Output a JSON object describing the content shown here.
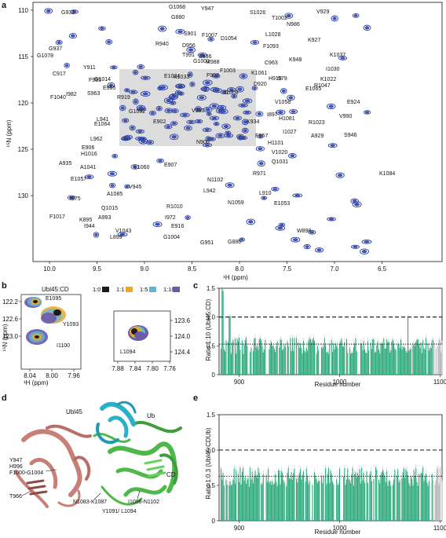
{
  "panels": {
    "a": {
      "letter": "a",
      "x_axis_label": "¹H (ppm)",
      "y_axis_label": "¹⁵N (ppm)",
      "x_ticks": [
        "10.0",
        "9.5",
        "9.0",
        "8.5",
        "8.0",
        "7.5",
        "7.0",
        "6.5"
      ],
      "y_ticks": [
        "110",
        "115",
        "120",
        "125",
        "130"
      ],
      "peak_labels": [
        "G932",
        "G1068",
        "Y947",
        "S1026",
        "T1002",
        "V929",
        "G880",
        "N986",
        "K927",
        "G937",
        "S901",
        "F1007",
        "D1054",
        "L1028",
        "G1078",
        "R940",
        "D956",
        "F1093",
        "I1030",
        "T991",
        "S936",
        "K1037",
        "M988",
        "G1001",
        "K948",
        "C917",
        "Y911",
        "F1003",
        "C963",
        "G1014",
        "F995",
        "K1033",
        "K1061",
        "I979",
        "K1022",
        "E1034",
        "F903",
        "H915",
        "E1065",
        "I982",
        "E955",
        "D920",
        "R1047",
        "F1040",
        "S963",
        "R919",
        "I1008",
        "E924",
        "V980",
        "V1058",
        "G1092",
        "L941",
        "I897",
        "E902",
        "V990",
        "K934",
        "R1023",
        "E1064",
        "H1081",
        "A929",
        "L962",
        "E957",
        "I1027",
        "E906",
        "N900",
        "H1016",
        "H1101",
        "S946",
        "A935",
        "V1020",
        "A1041",
        "L1060",
        "K1084",
        "E907",
        "R971",
        "Q1031",
        "E1057",
        "V945",
        "N1102",
        "A1085",
        "L942",
        "L910",
        "I975",
        "Q1015",
        "R1010",
        "N1059",
        "E1053",
        "F1017",
        "A993",
        "I972",
        "K895",
        "E916",
        "W898",
        "I944",
        "V1043",
        "G1004",
        "L899",
        "G886",
        "G951"
      ]
    },
    "b": {
      "letter": "b",
      "construct": "Ubl45:CD",
      "legend": [
        "1:0",
        "1:1",
        "1:5",
        "1:10"
      ],
      "legend_colors": [
        "#1a1a1a",
        "#e8a82a",
        "#5fb5d8",
        "#6e5aa8"
      ],
      "y_axis_label": "¹⁵N (ppm)",
      "x_axis_label": "¹H (ppm)",
      "left_x_ticks": [
        "8.04",
        "8.00",
        "7.96"
      ],
      "left_y_ticks": [
        "122.2",
        "122.6",
        "123.0"
      ],
      "right_x_ticks": [
        "7.88",
        "7.84",
        "7.80",
        "7.76"
      ],
      "right_y_ticks": [
        "123.6",
        "124.0",
        "124.4"
      ],
      "peak_labels": [
        "E1095",
        "Y1093",
        "I1100",
        "L1094"
      ]
    },
    "c": {
      "letter": "c",
      "y_axis_label": "Ratio 1:10 (Ubl45:CD)",
      "x_axis_label": "Residue number"
    },
    "d": {
      "letter": "d",
      "labels": [
        "Ubl45",
        "Ub",
        "CD",
        "Y947",
        "H996",
        "F1000-G1004",
        "T966",
        "N1083-K1087",
        "Y1091/ L1094",
        "I1098-N1102"
      ],
      "label_colors": {
        "Ubl45": "#c87f78",
        "Ub": "#2bb0c8",
        "CD": "#4fb84a"
      }
    },
    "e": {
      "letter": "e",
      "y_axis_label": "Ratio 1:0.3 (Ubl45:CDUb)",
      "x_axis_label": "Residue number"
    }
  },
  "chart_data": [
    {
      "type": "bar",
      "id": "c",
      "xlabel": "Residue number",
      "ylabel": "Ratio 1:10 (Ubl45:CD)",
      "xlim": [
        880,
        1102
      ],
      "ylim": [
        0,
        1.5
      ],
      "x_ticks": [
        900,
        1000,
        1100
      ],
      "y_ticks": [
        0,
        0.5,
        1.0,
        1.5
      ],
      "ref_lines": [
        1.0,
        0.53
      ],
      "bar_color": "#2aa87a",
      "highlight_color": "#b5b5b5",
      "grey_range": [
        1093,
        1102
      ],
      "highlight_points": [
        [
          883,
          1.5
        ],
        [
          884,
          1.45
        ],
        [
          888,
          1.02
        ],
        [
          890,
          1.0
        ],
        [
          891,
          1.02
        ],
        [
          1068,
          1.01
        ]
      ],
      "base_level": 0.5
    },
    {
      "type": "bar",
      "id": "e",
      "xlabel": "Residue number",
      "ylabel": "Ratio 1:0.3 (Ubl45:CDUb)",
      "xlim": [
        880,
        1102
      ],
      "ylim": [
        0,
        1.5
      ],
      "x_ticks": [
        900,
        1000,
        1100
      ],
      "y_ticks": [
        0,
        0.5,
        1.0,
        1.5
      ],
      "ref_lines": [
        1.0,
        0.63
      ],
      "bar_color": "#2aa87a",
      "highlight_color": "#b5b5b5",
      "grey_range": [
        1093,
        1102
      ],
      "base_level": 0.62
    }
  ]
}
